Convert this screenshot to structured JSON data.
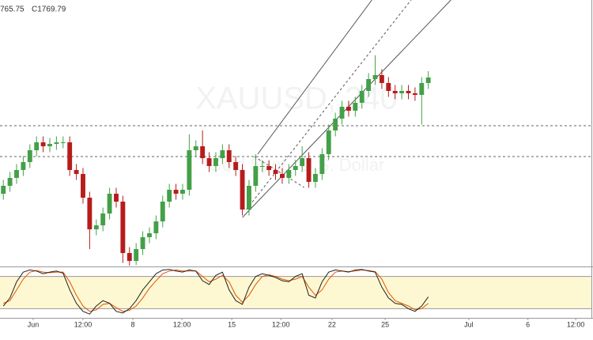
{
  "chart_data": {
    "type": "candlestick",
    "header": [
      "765.75",
      "C1769.79"
    ],
    "watermark": [
      "XAUUSD, 240",
      "Gold Spot / U.S. Dollar"
    ],
    "xlim": [
      -0.5,
      88.8
    ],
    "xticks": [
      {
        "value": 4.5,
        "label": "Jun"
      },
      {
        "value": 12,
        "label": "12:00"
      },
      {
        "value": 19.5,
        "label": "8"
      },
      {
        "value": 26.9,
        "label": "12:00"
      },
      {
        "value": 34.4,
        "label": "15"
      },
      {
        "value": 41.8,
        "label": "12:00"
      },
      {
        "value": 49.5,
        "label": "22"
      },
      {
        "value": 57.5,
        "label": "25"
      },
      {
        "value": 70.1,
        "label": "Jul"
      },
      {
        "value": 79,
        "label": "6"
      },
      {
        "value": 86.2,
        "label": "12:00"
      }
    ],
    "ylim": [
      1739.6,
      1807
    ],
    "up_color": "#43a047",
    "down_color": "#b71c1c",
    "open": [
      1758,
      1760,
      1762,
      1764,
      1766,
      1769,
      1771,
      1770,
      1770.6,
      1771,
      1771,
      1764,
      1763,
      1757,
      1749,
      1750,
      1753,
      1758,
      1756,
      1743,
      1741,
      1744,
      1747,
      1748,
      1751,
      1756,
      1759,
      1758,
      1759,
      1769,
      1770,
      1767,
      1765,
      1767,
      1769,
      1766,
      1764,
      1754,
      1760,
      1765,
      1765,
      1764,
      1763,
      1762,
      1764,
      1765,
      1767,
      1761,
      1763,
      1768,
      1774,
      1777,
      1780,
      1779,
      1781,
      1784,
      1787,
      1788,
      1786,
      1784,
      1783.4,
      1784,
      1783.4,
      1783,
      1786
    ],
    "high": [
      1761.5,
      1763.5,
      1765.5,
      1767.5,
      1770.5,
      1772.5,
      1772.5,
      1772.1,
      1772.5,
      1772.5,
      1772.5,
      1765.5,
      1764.5,
      1758.5,
      1751.5,
      1754.5,
      1759.5,
      1759.5,
      1757.5,
      1744.5,
      1745.5,
      1748.5,
      1749.5,
      1752.5,
      1757.5,
      1760.5,
      1760.5,
      1760.5,
      1773,
      1771.5,
      1774,
      1768.5,
      1768.5,
      1770.5,
      1770.5,
      1767.5,
      1765.5,
      1761.5,
      1768,
      1766.5,
      1766.5,
      1765.5,
      1764.5,
      1765.5,
      1766.5,
      1770,
      1768.5,
      1764.5,
      1769.5,
      1775.5,
      1778.5,
      1781.5,
      1781.5,
      1782.5,
      1785.5,
      1788.5,
      1793,
      1789.5,
      1787.5,
      1785.5,
      1785.5,
      1785.5,
      1784.9,
      1787.5,
      1789
    ],
    "low": [
      1756.5,
      1758.5,
      1760.5,
      1762.5,
      1764.5,
      1767.5,
      1768.5,
      1768.5,
      1769.1,
      1769.5,
      1762.5,
      1761.5,
      1755.5,
      1744,
      1747.5,
      1748.5,
      1751.5,
      1754.5,
      1740.5,
      1739.8,
      1740,
      1742.5,
      1745.5,
      1746.5,
      1749.5,
      1754.5,
      1756.5,
      1756.5,
      1757.5,
      1767.5,
      1765.5,
      1763.5,
      1763.5,
      1765.5,
      1764.5,
      1762.5,
      1752.5,
      1752.5,
      1758.5,
      1763.5,
      1762.5,
      1761.5,
      1760.5,
      1760.5,
      1762.5,
      1763.5,
      1759.5,
      1759.5,
      1761.5,
      1766.5,
      1772.5,
      1775.5,
      1777.5,
      1777.5,
      1779.5,
      1782.5,
      1785.5,
      1784.5,
      1782.5,
      1781.9,
      1781.9,
      1781.9,
      1781.5,
      1775.5,
      1784.5
    ],
    "close": [
      1760,
      1762,
      1764,
      1766,
      1769,
      1771,
      1770,
      1770.6,
      1771,
      1771,
      1764,
      1763,
      1757,
      1749,
      1750,
      1753,
      1758,
      1756,
      1743,
      1741,
      1744,
      1747,
      1748,
      1751,
      1756,
      1759,
      1758,
      1759,
      1769,
      1770,
      1767,
      1765,
      1767,
      1769,
      1766,
      1764,
      1754,
      1760,
      1765,
      1765,
      1764,
      1763,
      1762,
      1764,
      1765,
      1767,
      1761,
      1763,
      1768,
      1774,
      1777,
      1780,
      1779,
      1781,
      1784,
      1787,
      1788,
      1786,
      1784,
      1783.4,
      1784,
      1783.4,
      1783,
      1786,
      1787.4
    ],
    "levels": [
      1775.2,
      1767.4
    ],
    "drawings": [
      {
        "style": "solid",
        "x": [
          38.3,
          55.5
        ],
        "y": [
          1768,
          1807
        ]
      },
      {
        "style": "dashed",
        "x": [
          36.6,
          61.4
        ],
        "y": [
          1754,
          1807
        ]
      },
      {
        "style": "solid",
        "x": [
          36,
          67.4
        ],
        "y": [
          1752,
          1807
        ]
      },
      {
        "style": "dashed",
        "x": [
          37.8,
          45.3
        ],
        "y": [
          1767.4,
          1759.6
        ]
      }
    ],
    "stochastic": {
      "ylim": [
        0,
        100
      ],
      "bands": [
        20,
        80
      ],
      "k_color": "#222222",
      "d_color": "#e65100",
      "band_color": "#fdf8d2",
      "k": [
        25,
        40,
        70,
        88,
        92,
        90,
        85,
        88,
        90,
        86,
        55,
        30,
        15,
        10,
        25,
        35,
        30,
        15,
        12,
        20,
        35,
        55,
        70,
        85,
        92,
        93,
        90,
        88,
        92,
        90,
        72,
        65,
        82,
        88,
        55,
        35,
        28,
        60,
        80,
        85,
        82,
        78,
        72,
        70,
        80,
        85,
        45,
        40,
        70,
        88,
        92,
        90,
        88,
        92,
        93,
        90,
        88,
        60,
        40,
        30,
        28,
        20,
        15,
        25,
        42
      ],
      "d": [
        30,
        35,
        55,
        75,
        88,
        91,
        88,
        87,
        88,
        88,
        70,
        45,
        25,
        15,
        18,
        28,
        30,
        22,
        15,
        17,
        25,
        40,
        58,
        72,
        85,
        90,
        92,
        90,
        90,
        90,
        80,
        70,
        75,
        82,
        70,
        45,
        32,
        45,
        65,
        80,
        83,
        80,
        75,
        72,
        75,
        80,
        60,
        45,
        55,
        75,
        88,
        90,
        89,
        90,
        92,
        91,
        89,
        75,
        50,
        35,
        30,
        25,
        18,
        20,
        30
      ]
    }
  }
}
